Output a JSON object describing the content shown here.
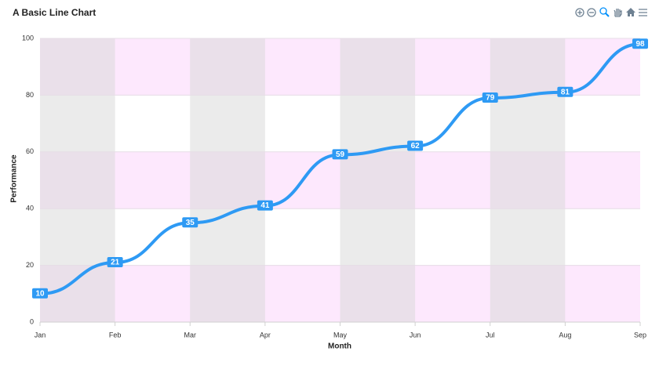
{
  "chart_data": {
    "type": "line",
    "title": "A Basic Line Chart",
    "x_label": "Month",
    "y_label": "Performance",
    "categories": [
      "Jan",
      "Feb",
      "Mar",
      "Apr",
      "May",
      "Jun",
      "Jul",
      "Aug",
      "Sep"
    ],
    "values": [
      10,
      21,
      35,
      41,
      59,
      62,
      79,
      81,
      98
    ],
    "color": "#2e9af4",
    "ylim": [
      0,
      100
    ],
    "yticks": [
      0,
      20,
      40,
      60,
      80,
      100
    ],
    "grid": true,
    "row_band_color": "#fde8fd",
    "column_band_color": "#d8d8d8",
    "smooth": true,
    "data_labels": true
  }
}
